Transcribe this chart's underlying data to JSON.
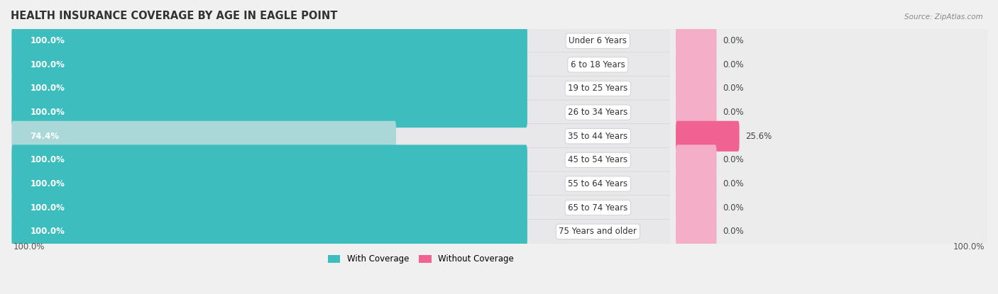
{
  "title": "HEALTH INSURANCE COVERAGE BY AGE IN EAGLE POINT",
  "source": "Source: ZipAtlas.com",
  "categories": [
    "Under 6 Years",
    "6 to 18 Years",
    "19 to 25 Years",
    "26 to 34 Years",
    "35 to 44 Years",
    "45 to 54 Years",
    "55 to 64 Years",
    "65 to 74 Years",
    "75 Years and older"
  ],
  "with_coverage": [
    100.0,
    100.0,
    100.0,
    100.0,
    74.4,
    100.0,
    100.0,
    100.0,
    100.0
  ],
  "without_coverage": [
    0.0,
    0.0,
    0.0,
    0.0,
    25.6,
    0.0,
    0.0,
    0.0,
    0.0
  ],
  "color_with": "#3dbdbd",
  "color_with_light": "#aad8d8",
  "color_without_stub": "#f4aec8",
  "color_without_full": "#f06292",
  "row_bg_dark": "#e8e8e8",
  "row_bg_light": "#f4f4f4",
  "fig_bg": "#f0f0f0",
  "legend_label_with": "With Coverage",
  "legend_label_without": "Without Coverage",
  "x_left_label": "100.0%",
  "x_right_label": "100.0%",
  "title_fontsize": 10.5,
  "bar_label_fontsize": 8.5,
  "cat_label_fontsize": 8.5,
  "val_label_fontsize": 8.5,
  "tick_fontsize": 8.5,
  "source_fontsize": 7.5
}
